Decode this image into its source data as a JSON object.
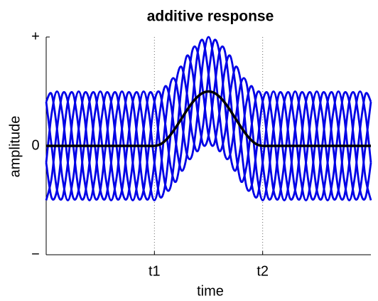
{
  "chart_data": {
    "type": "line",
    "title": "additive response",
    "xlabel": "time",
    "ylabel": "amplitude",
    "x": [
      0,
      0.05,
      0.1,
      0.15,
      0.2,
      0.25,
      0.3,
      0.35,
      0.4,
      0.45,
      0.5,
      0.55,
      0.6,
      0.65,
      0.7,
      0.75,
      0.8,
      0.85,
      0.9,
      0.95,
      1,
      1.05,
      1.1,
      1.15,
      1.2,
      1.25,
      1.3,
      1.35,
      1.4,
      1.45,
      1.5,
      1.55,
      1.6,
      1.65,
      1.7,
      1.75,
      1.8,
      1.85,
      1.9,
      1.95,
      2,
      2.05,
      2.1,
      2.15,
      2.2,
      2.25,
      2.3,
      2.35,
      2.4,
      2.45,
      2.5,
      2.55,
      2.6,
      2.65,
      2.7,
      2.75,
      2.8,
      2.85,
      2.9,
      2.95,
      3
    ],
    "series": [
      {
        "color": "#0000e6",
        "values": [
          -0.5,
          -0.294,
          0.155,
          0.476,
          0.405,
          0,
          -0.405,
          -0.476,
          -0.155,
          0.294,
          0.5,
          0.294,
          -0.155,
          -0.476,
          -0.405,
          0,
          0.405,
          0.476,
          0.155,
          -0.294,
          -0.5,
          -0.282,
          0.203,
          0.579,
          0.578,
          0.25,
          -0.078,
          -0.079,
          0.297,
          0.782,
          1,
          0.782,
          0.297,
          -0.079,
          -0.078,
          0.25,
          0.578,
          0.579,
          0.203,
          -0.282,
          -0.5,
          -0.294,
          0.155,
          0.476,
          0.405,
          0,
          -0.405,
          -0.476,
          -0.155,
          0.294,
          0.5,
          0.294,
          -0.155,
          -0.476,
          -0.405,
          0,
          0.405,
          0.476,
          0.155,
          -0.294,
          -0.5
        ]
      },
      {
        "color": "#0000e6",
        "values": [
          -0.155,
          0.294,
          0.5,
          0.294,
          -0.155,
          -0.476,
          -0.405,
          0,
          0.405,
          0.476,
          0.155,
          -0.294,
          -0.5,
          -0.294,
          0.155,
          0.476,
          0.405,
          0,
          -0.405,
          -0.476,
          -0.155,
          0.306,
          0.548,
          0.397,
          0.018,
          -0.226,
          -0.078,
          0.397,
          0.857,
          0.964,
          0.655,
          0.194,
          -0.048,
          0.103,
          0.482,
          0.726,
          0.578,
          0.103,
          -0.357,
          -0.464,
          -0.155,
          0.294,
          0.5,
          0.294,
          -0.155,
          -0.476,
          -0.405,
          0,
          0.405,
          0.476,
          0.155,
          -0.294,
          -0.5,
          -0.294,
          0.155,
          0.476,
          0.405,
          0,
          -0.405,
          -0.476,
          -0.155
        ]
      },
      {
        "color": "#0000e6",
        "values": [
          0.405,
          0.476,
          0.155,
          -0.294,
          -0.5,
          -0.294,
          0.155,
          0.476,
          0.405,
          0,
          -0.405,
          -0.476,
          -0.155,
          0.294,
          0.5,
          0.294,
          -0.155,
          -0.476,
          -0.405,
          0,
          0.405,
          0.488,
          0.203,
          -0.191,
          -0.327,
          -0.044,
          0.482,
          0.873,
          0.857,
          0.488,
          0.095,
          0.012,
          0.297,
          0.691,
          0.827,
          0.544,
          0.018,
          -0.373,
          -0.357,
          0.012,
          0.405,
          0.476,
          0.155,
          -0.294,
          -0.5,
          -0.294,
          0.155,
          0.476,
          0.405,
          0,
          -0.405,
          -0.476,
          -0.155,
          0.294,
          0.5,
          0.294,
          -0.155,
          -0.476,
          -0.405,
          0,
          0.405
        ]
      },
      {
        "color": "#0000e6",
        "values": [
          0.405,
          0,
          -0.405,
          -0.476,
          -0.155,
          0.294,
          0.5,
          0.294,
          -0.155,
          -0.476,
          -0.405,
          0,
          0.405,
          0.476,
          0.155,
          -0.294,
          -0.5,
          -0.294,
          0.155,
          0.476,
          0.405,
          0.012,
          -0.357,
          -0.373,
          0.018,
          0.544,
          0.827,
          0.691,
          0.297,
          0.012,
          0.095,
          0.488,
          0.857,
          0.873,
          0.482,
          -0.044,
          -0.327,
          -0.191,
          0.203,
          0.488,
          0.405,
          0,
          -0.405,
          -0.476,
          -0.155,
          0.294,
          0.5,
          0.294,
          -0.155,
          -0.476,
          -0.405,
          0,
          0.405,
          0.476,
          0.155,
          -0.294,
          -0.5,
          -0.294,
          0.155,
          0.476,
          0.405
        ]
      },
      {
        "color": "#0000e6",
        "values": [
          -0.155,
          -0.476,
          -0.405,
          0,
          0.405,
          0.476,
          0.155,
          -0.294,
          -0.5,
          -0.294,
          0.155,
          0.476,
          0.405,
          0,
          -0.405,
          -0.476,
          -0.155,
          0.294,
          0.5,
          0.294,
          -0.155,
          -0.464,
          -0.357,
          0.103,
          0.578,
          0.726,
          0.482,
          0.103,
          -0.048,
          0.194,
          0.655,
          0.964,
          0.857,
          0.397,
          -0.078,
          -0.226,
          0.018,
          0.397,
          0.548,
          0.306,
          -0.155,
          -0.476,
          -0.405,
          0,
          0.405,
          0.476,
          0.155,
          -0.294,
          -0.5,
          -0.294,
          0.155,
          0.476,
          0.405,
          0,
          -0.405,
          -0.476,
          -0.155,
          0.294,
          0.5,
          0.294,
          -0.155
        ]
      },
      {
        "color": "#000000",
        "values": [
          0,
          0,
          0,
          0,
          0,
          0,
          0,
          0,
          0,
          0,
          0,
          0,
          0,
          0,
          0,
          0,
          0,
          0,
          0,
          0,
          0,
          0.012,
          0.048,
          0.103,
          0.173,
          0.25,
          0.327,
          0.397,
          0.452,
          0.488,
          0.5,
          0.488,
          0.452,
          0.397,
          0.327,
          0.25,
          0.173,
          0.103,
          0.048,
          0.012,
          0,
          0,
          0,
          0,
          0,
          0,
          0,
          0,
          0,
          0,
          0,
          0,
          0,
          0,
          0,
          0,
          0,
          0,
          0,
          0,
          0
        ]
      }
    ],
    "xlim": [
      0,
      3
    ],
    "ylim": [
      -1,
      1
    ],
    "xticks": [
      {
        "value": 1,
        "label": "t1"
      },
      {
        "value": 2,
        "label": "t2"
      }
    ],
    "yticks": [
      {
        "value": -1,
        "label": "−"
      },
      0,
      {
        "value": 1,
        "label": "+"
      }
    ],
    "xgrid": true
  }
}
